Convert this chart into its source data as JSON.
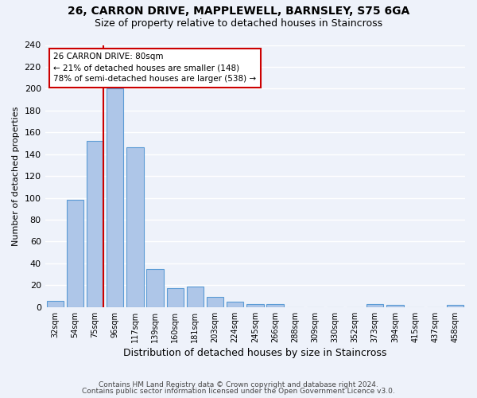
{
  "title": "26, CARRON DRIVE, MAPPLEWELL, BARNSLEY, S75 6GA",
  "subtitle": "Size of property relative to detached houses in Staincross",
  "xlabel": "Distribution of detached houses by size in Staincross",
  "ylabel": "Number of detached properties",
  "bar_labels": [
    "32sqm",
    "54sqm",
    "75sqm",
    "96sqm",
    "117sqm",
    "139sqm",
    "160sqm",
    "181sqm",
    "203sqm",
    "224sqm",
    "245sqm",
    "266sqm",
    "288sqm",
    "309sqm",
    "330sqm",
    "352sqm",
    "373sqm",
    "394sqm",
    "415sqm",
    "437sqm",
    "458sqm"
  ],
  "bar_values": [
    6,
    98,
    152,
    200,
    146,
    35,
    17,
    19,
    9,
    5,
    3,
    3,
    0,
    0,
    0,
    0,
    3,
    2,
    0,
    0,
    2
  ],
  "bar_color": "#aec6e8",
  "bar_edge_color": "#5b9bd5",
  "vline_color": "#cc0000",
  "annotation_title": "26 CARRON DRIVE: 80sqm",
  "annotation_line1": "← 21% of detached houses are smaller (148)",
  "annotation_line2": "78% of semi-detached houses are larger (538) →",
  "annotation_box_color": "#ffffff",
  "annotation_box_edge_color": "#cc0000",
  "ylim": [
    0,
    240
  ],
  "yticks": [
    0,
    20,
    40,
    60,
    80,
    100,
    120,
    140,
    160,
    180,
    200,
    220,
    240
  ],
  "footer_line1": "Contains HM Land Registry data © Crown copyright and database right 2024.",
  "footer_line2": "Contains public sector information licensed under the Open Government Licence v3.0.",
  "bg_color": "#eef2fa",
  "grid_color": "#ffffff"
}
